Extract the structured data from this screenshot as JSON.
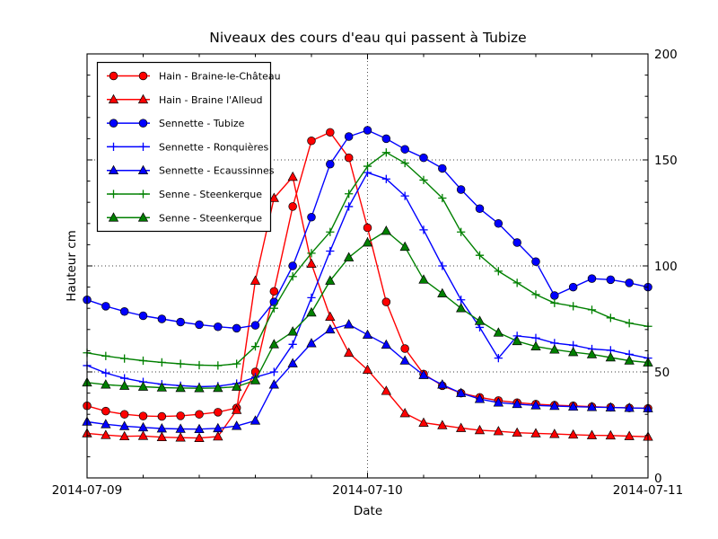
{
  "chart_data": {
    "type": "line",
    "title": "Niveaux des cours d'eau qui passent à Tubize",
    "xlabel": "Date",
    "ylabel": "Hauteur cm",
    "grid": "dotted-major-black",
    "legend_position": "upper-left",
    "xlim_hours": [
      0,
      48
    ],
    "ylim": [
      0,
      200
    ],
    "x_tick_hours": [
      0,
      24,
      48
    ],
    "x_tick_labels": [
      "2014-07-09",
      "2014-07-10",
      "2014-07-11"
    ],
    "x_minor_step_hours": 4.8,
    "y_ticks": [
      0,
      50,
      100,
      150,
      200
    ],
    "y_minor_step": 10,
    "t_hours": [
      0,
      1.6,
      3.2,
      4.8,
      6.4,
      8,
      9.6,
      11.2,
      12.8,
      14.4,
      16,
      17.6,
      19.2,
      20.8,
      22.4,
      24,
      25.6,
      27.2,
      28.8,
      30.4,
      32,
      33.6,
      35.2,
      36.8,
      38.4,
      40,
      41.6,
      43.2,
      44.8,
      46.4,
      48
    ],
    "series": [
      {
        "name": "Hain - Braine-le-Château",
        "color": "#ff0000",
        "marker": "circle",
        "values": [
          34,
          31.5,
          30,
          29.2,
          29,
          29.3,
          30,
          31,
          33,
          50,
          88,
          128,
          159,
          163,
          151,
          118,
          83,
          61,
          49,
          43.5,
          40,
          38,
          36.5,
          35.5,
          34.8,
          34.3,
          34,
          33.6,
          33.3,
          33,
          32.8
        ]
      },
      {
        "name": "Hain - Braine l'Alleud",
        "color": "#ff0000",
        "marker": "triangle",
        "values": [
          21,
          20.2,
          19.6,
          19.8,
          19.2,
          19,
          18.8,
          19.5,
          32,
          93,
          132,
          142,
          101,
          76,
          59,
          51,
          41,
          30.5,
          26,
          24.8,
          23.5,
          22.5,
          22,
          21.3,
          21,
          20.7,
          20.4,
          20.1,
          20,
          19.7,
          19.4
        ]
      },
      {
        "name": "Sennette - Tubize",
        "color": "#0000ff",
        "marker": "circle",
        "values": [
          84,
          81,
          78.5,
          76.5,
          75,
          73.5,
          72.3,
          71.3,
          70.6,
          72,
          83,
          100,
          123,
          148,
          161,
          164,
          160,
          155,
          151,
          146,
          136,
          127,
          120,
          111,
          102,
          86,
          90,
          94,
          93.5,
          92,
          90
        ]
      },
      {
        "name": "Sennette - Ronquières",
        "color": "#0000ff",
        "marker": "plus",
        "values": [
          53,
          49.5,
          47,
          45.3,
          44.2,
          43.5,
          43,
          43.3,
          44.5,
          47.5,
          50,
          63,
          85,
          107,
          128,
          144,
          141,
          133,
          117,
          100,
          84,
          71,
          56.5,
          67,
          66,
          63.6,
          62.6,
          60.8,
          60.2,
          58.3,
          56.5
        ]
      },
      {
        "name": "Sennette - Ecaussinnes",
        "color": "#0000ff",
        "marker": "triangle",
        "values": [
          26.5,
          25.3,
          24.4,
          23.8,
          23.3,
          23.1,
          23,
          23.4,
          24.5,
          27,
          44,
          54,
          63.5,
          70,
          72.4,
          67.5,
          62.8,
          55.3,
          48.5,
          44,
          40,
          37.2,
          35.5,
          34.8,
          34.2,
          33.9,
          33.6,
          33.4,
          33.2,
          33,
          32.8
        ]
      },
      {
        "name": "Senne - Steenkerque",
        "color": "#008000",
        "marker": "plus",
        "values": [
          59,
          57.5,
          56.3,
          55.3,
          54.5,
          53.8,
          53.2,
          53,
          53.8,
          62,
          80,
          95,
          106,
          116,
          134,
          147,
          153.5,
          148.5,
          140.5,
          132,
          116,
          105,
          97.5,
          92,
          86.5,
          82.5,
          81,
          79.3,
          75.5,
          73,
          71.5
        ]
      },
      {
        "name": "Senne - Steenkerque",
        "color": "#008000",
        "marker": "triangle",
        "values": [
          45,
          44,
          43.4,
          43,
          42.6,
          42.4,
          42.3,
          42.4,
          43,
          46,
          63,
          69,
          78,
          93,
          104,
          111,
          116.5,
          109,
          93.5,
          87,
          80,
          74,
          68.5,
          64.5,
          62,
          60.5,
          59.3,
          58.3,
          56.8,
          55.3,
          54.4
        ]
      }
    ]
  }
}
